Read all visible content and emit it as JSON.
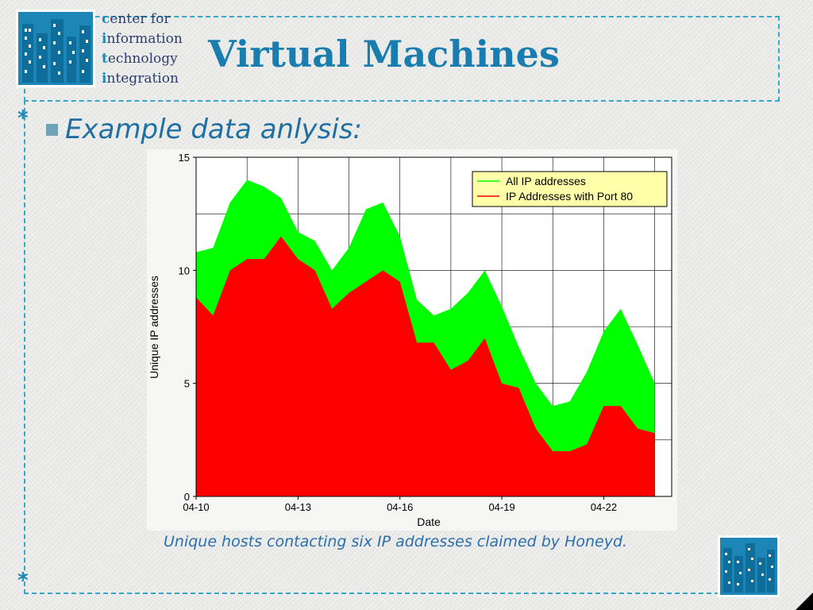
{
  "org": {
    "lines": [
      {
        "initial": "c",
        "rest": "enter for"
      },
      {
        "initial": "i",
        "rest": "nformation"
      },
      {
        "initial": "t",
        "rest": "echnology"
      },
      {
        "initial": "i",
        "rest": "ntegration"
      }
    ]
  },
  "slide": {
    "title": "Virtual Machines",
    "bullet": "Example data anlysis:",
    "caption": "Unique hosts contacting six IP addresses claimed by Honeyd.",
    "star_glyph": "*"
  },
  "colors": {
    "accent": "#1d88b8",
    "all_ip": "#00ff00",
    "port80": "#ff0000",
    "legend_bg": "#ffffaa"
  },
  "chart_data": {
    "type": "area",
    "xlabel": "Date",
    "ylabel": "Unique IP addresses",
    "xlim": [
      "04-10",
      "04-24"
    ],
    "ylim": [
      0,
      15
    ],
    "x_ticks": [
      "04-10",
      "04-13",
      "04-16",
      "04-19",
      "04-22"
    ],
    "y_ticks": [
      0,
      5,
      10,
      15
    ],
    "grid": true,
    "legend_position": "top-right",
    "x": [
      "04-10 00:00",
      "04-10 12:00",
      "04-11 00:00",
      "04-11 12:00",
      "04-12 00:00",
      "04-12 12:00",
      "04-13 00:00",
      "04-13 12:00",
      "04-14 00:00",
      "04-14 12:00",
      "04-15 00:00",
      "04-15 12:00",
      "04-16 00:00",
      "04-16 12:00",
      "04-17 00:00",
      "04-17 12:00",
      "04-18 00:00",
      "04-18 12:00",
      "04-19 00:00",
      "04-19 12:00",
      "04-20 00:00",
      "04-20 12:00",
      "04-21 00:00",
      "04-21 12:00",
      "04-22 00:00",
      "04-22 12:00",
      "04-23 00:00",
      "04-23 12:00"
    ],
    "series": [
      {
        "name": "All IP addresses",
        "values": [
          10.8,
          11.0,
          13.0,
          14.0,
          13.7,
          13.2,
          11.7,
          11.3,
          10.0,
          11.0,
          12.7,
          13.0,
          11.5,
          8.7,
          8.0,
          8.3,
          9.0,
          10.0,
          8.4,
          6.6,
          5.0,
          4.0,
          4.2,
          5.5,
          7.3,
          8.3,
          6.7,
          5.0
        ]
      },
      {
        "name": "IP Addresses with Port 80",
        "values": [
          8.8,
          8.0,
          10.0,
          10.5,
          10.5,
          11.5,
          10.5,
          10.0,
          8.3,
          9.0,
          9.5,
          10.0,
          9.5,
          6.8,
          6.8,
          5.6,
          6.0,
          7.0,
          5.0,
          4.8,
          3.0,
          2.0,
          2.0,
          2.3,
          4.0,
          4.0,
          3.0,
          2.8
        ]
      }
    ]
  }
}
